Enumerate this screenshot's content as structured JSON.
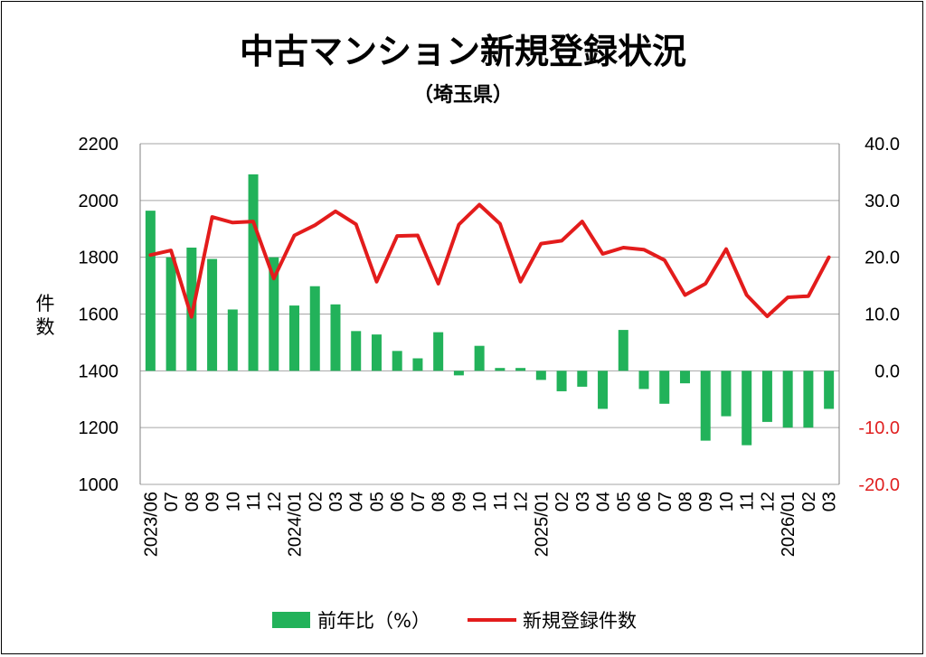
{
  "chart_data": {
    "type": "bar+line",
    "title": "中古マンション新規登録状況",
    "subtitle": "（埼玉県）",
    "ylabel": "件数",
    "ylim": [
      1000,
      2200
    ],
    "y_ticks": [
      "2200",
      "2000",
      "1800",
      "1600",
      "1400",
      "1200",
      "1000"
    ],
    "y2lim": [
      -20,
      40
    ],
    "y2_ticks": [
      "40.0",
      "30.0",
      "20.0",
      "10.0",
      "0.0",
      "-10.0",
      "-20.0"
    ],
    "categories": [
      "2023/06",
      "07",
      "08",
      "09",
      "10",
      "11",
      "12",
      "2024/01",
      "02",
      "03",
      "04",
      "05",
      "06",
      "07",
      "08",
      "09",
      "10",
      "11",
      "12",
      "2025/01",
      "02",
      "03",
      "04",
      "05",
      "06",
      "07",
      "08",
      "09",
      "10",
      "11",
      "12",
      "2026/01",
      "02",
      "03"
    ],
    "series": [
      {
        "name": "前年比（%）",
        "type": "bar",
        "axis": "right",
        "color": "#22b25a",
        "values": [
          28.2,
          20.0,
          21.7,
          19.7,
          10.8,
          34.6,
          20.0,
          11.5,
          14.9,
          11.7,
          7.0,
          6.4,
          3.5,
          2.2,
          6.8,
          -0.8,
          4.4,
          0.5,
          0.5,
          -1.6,
          -3.6,
          -2.8,
          -6.7,
          7.2,
          -3.2,
          -5.8,
          -2.2,
          -12.3,
          -8.0,
          -13.1,
          -9.0,
          -10.0,
          -10.0,
          -6.7
        ]
      },
      {
        "name": "新規登録件数",
        "type": "line",
        "axis": "left",
        "color": "#e31c1c",
        "values": [
          1808,
          1824,
          1590,
          1942,
          1922,
          1926,
          1725,
          1877,
          1913,
          1962,
          1916,
          1714,
          1875,
          1877,
          1707,
          1915,
          1985,
          1918,
          1714,
          1848,
          1858,
          1926,
          1812,
          1834,
          1827,
          1790,
          1667,
          1707,
          1829,
          1667,
          1592,
          1659,
          1663,
          1800
        ]
      }
    ],
    "grid": "horizontal",
    "legend_position": "bottom"
  }
}
